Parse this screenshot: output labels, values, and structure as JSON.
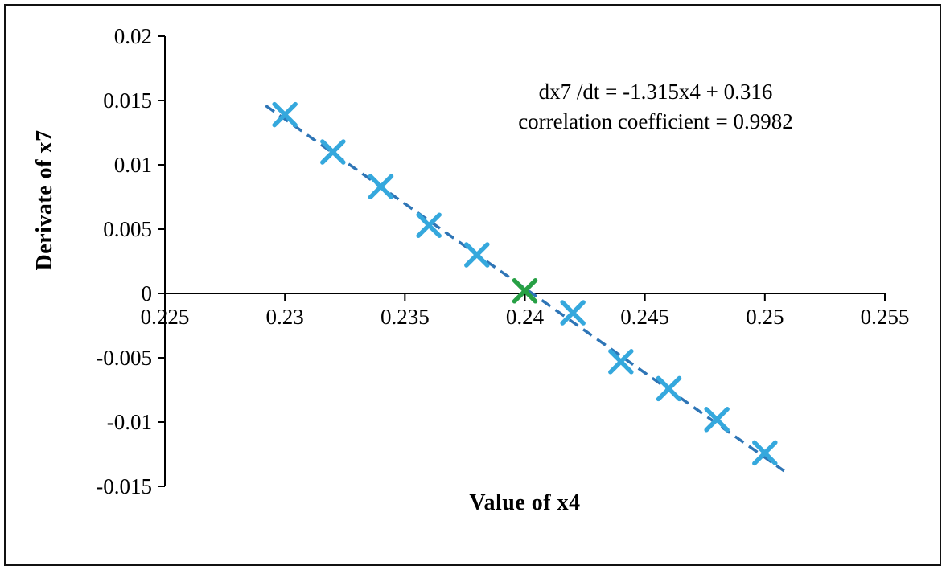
{
  "chart_data": {
    "type": "scatter",
    "title": "",
    "xlabel": "Value of x4",
    "ylabel": "Derivate of x7",
    "xlim": [
      0.225,
      0.255
    ],
    "ylim": [
      -0.015,
      0.02
    ],
    "xticks": [
      0.225,
      0.23,
      0.235,
      0.24,
      0.245,
      0.25,
      0.255
    ],
    "yticks": [
      -0.015,
      -0.01,
      -0.005,
      0,
      0.005,
      0.01,
      0.015,
      0.02
    ],
    "grid": false,
    "legend": "none",
    "axis_color": "#000000",
    "series": [
      {
        "name": "derivative-points",
        "marker": "x",
        "color": "#35a8dd",
        "points": [
          {
            "x": 0.23,
            "y": 0.0139
          },
          {
            "x": 0.232,
            "y": 0.011
          },
          {
            "x": 0.234,
            "y": 0.0083
          },
          {
            "x": 0.236,
            "y": 0.0053
          },
          {
            "x": 0.238,
            "y": 0.003
          },
          {
            "x": 0.242,
            "y": -0.0015
          },
          {
            "x": 0.244,
            "y": -0.0053
          },
          {
            "x": 0.246,
            "y": -0.0074
          },
          {
            "x": 0.248,
            "y": -0.0098
          },
          {
            "x": 0.25,
            "y": -0.0124
          }
        ]
      },
      {
        "name": "equilibrium-point",
        "marker": "x",
        "color": "#27a045",
        "points": [
          {
            "x": 0.24,
            "y": 0.0002
          }
        ]
      }
    ],
    "trendline": {
      "slope": -1.315,
      "intercept": 0.316,
      "x_start": 0.2292,
      "x_end": 0.2508,
      "color": "#2e75b6",
      "style": "dashed"
    },
    "annotation": {
      "line1": "dx7 /dt = -1.315x4 + 0.316",
      "line2": "correlation coefficient = 0.9982"
    }
  }
}
